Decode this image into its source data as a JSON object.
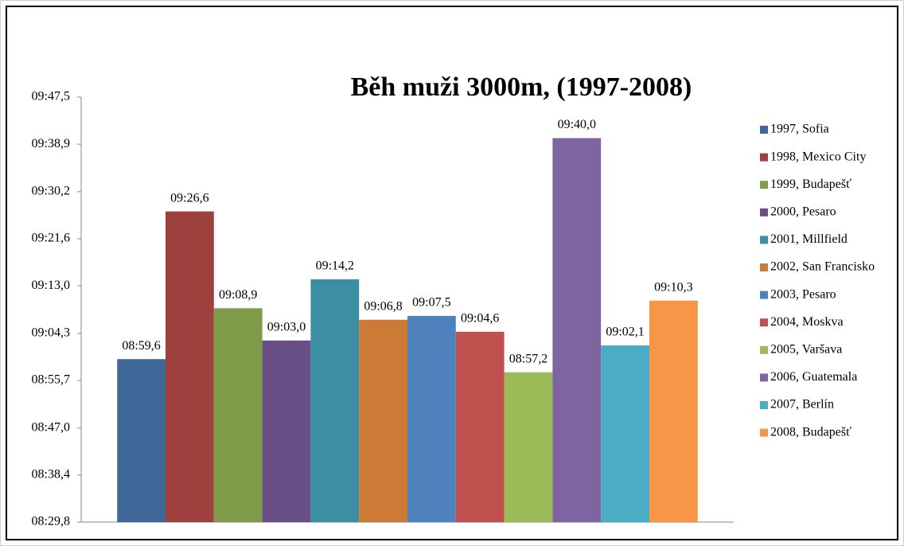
{
  "chart_data": {
    "type": "bar",
    "title": "Běh muži 3000m, (1997-2008)",
    "categories": [
      "1997, Sofia",
      "1998, Mexico City",
      "1999, Budapešť",
      "2000, Pesaro",
      "2001, Millfield",
      "2002, San Francisko",
      "2003, Pesaro",
      "2004, Moskva",
      "2005, Varšava",
      "2006, Guatemala",
      "2007, Berlín",
      "2008, Budapešť"
    ],
    "values": [
      539.6,
      566.6,
      548.9,
      543.0,
      554.2,
      546.8,
      547.5,
      544.6,
      537.2,
      580.0,
      542.1,
      550.3
    ],
    "value_labels": [
      "08:59,6",
      "09:26,6",
      "09:08,9",
      "09:03,0",
      "09:14,2",
      "09:06,8",
      "09:07,5",
      "09:04,6",
      "08:57,2",
      "09:40,0",
      "09:02,1",
      "09:10,3"
    ],
    "colors": [
      "#40699a",
      "#9e403d",
      "#7f9a48",
      "#6a4f86",
      "#3c8fa3",
      "#cc7a36",
      "#4f81bd",
      "#c0504d",
      "#9bbb59",
      "#8064a2",
      "#4bacc6",
      "#f79646"
    ],
    "ylim": [
      509.8,
      587.5
    ],
    "yticks": [
      {
        "value": 509.8,
        "label": "08:29,8"
      },
      {
        "value": 518.4,
        "label": "08:38,4"
      },
      {
        "value": 527.0,
        "label": "08:47,0"
      },
      {
        "value": 535.7,
        "label": "08:55,7"
      },
      {
        "value": 544.3,
        "label": "09:04,3"
      },
      {
        "value": 553.0,
        "label": "09:13,0"
      },
      {
        "value": 561.6,
        "label": "09:21,6"
      },
      {
        "value": 570.2,
        "label": "09:30,2"
      },
      {
        "value": 578.9,
        "label": "09:38,9"
      },
      {
        "value": 587.5,
        "label": "09:47,5"
      }
    ],
    "legend": "right"
  }
}
